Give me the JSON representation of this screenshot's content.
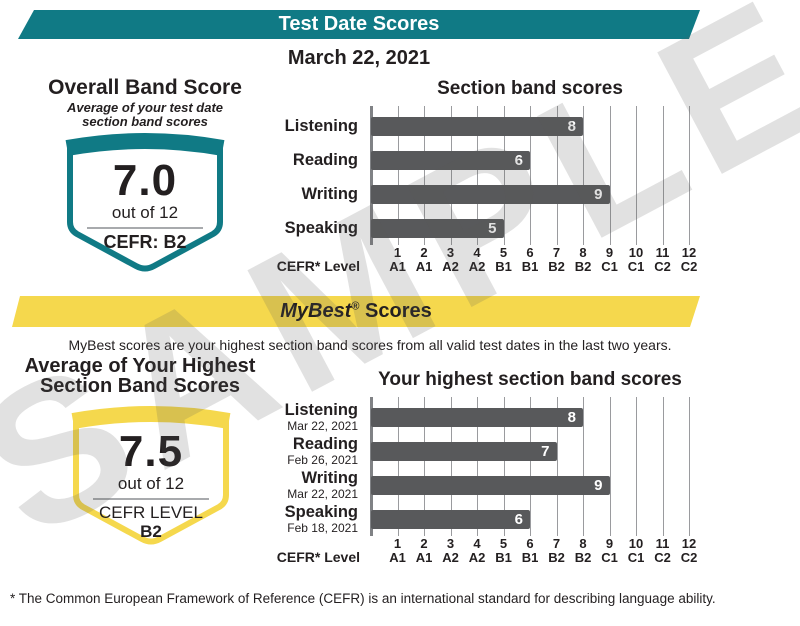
{
  "watermark": "SAMPLE",
  "header": {
    "title": "Test Date Scores",
    "date": "March 22, 2021"
  },
  "overall": {
    "title": "Overall Band Score",
    "subtitle_line1": "Average of your test date",
    "subtitle_line2": "section band scores",
    "score": "7.0",
    "out_of": "out of 12",
    "cefr": "CEFR: B2"
  },
  "mybest": {
    "banner_name": "MyBest",
    "banner_reg": "®",
    "banner_rest": " Scores",
    "description": "MyBest scores are your highest section band scores from all valid test dates in the last two years.",
    "avg_title_line1": "Average of Your Highest",
    "avg_title_line2": "Section Band Scores",
    "score": "7.5",
    "out_of": "out of 12",
    "cefr_label": "CEFR LEVEL",
    "cefr_value": "B2"
  },
  "footnote": "* The Common European Framework of Reference (CEFR) is an international standard for describing language ability.",
  "colors": {
    "teal": "#107a85",
    "yellow": "#f5d84d",
    "bar": "#58595b",
    "grid": "#9a9b9e",
    "axis": "#808285",
    "text": "#231f20",
    "divider": "#a8aaad"
  },
  "chart_data": [
    {
      "type": "bar",
      "title": "Section band scores",
      "categories": [
        "Listening",
        "Reading",
        "Writing",
        "Speaking"
      ],
      "values": [
        8,
        6,
        9,
        5
      ],
      "xlim": [
        0,
        12
      ],
      "x_ticks": [
        "1",
        "2",
        "3",
        "4",
        "5",
        "6",
        "7",
        "8",
        "9",
        "10",
        "11",
        "12"
      ],
      "cefr_levels": [
        "A1",
        "A1",
        "A2",
        "A2",
        "B1",
        "B1",
        "B2",
        "B2",
        "C1",
        "C1",
        "C2",
        "C2"
      ],
      "axis_label": "CEFR* Level",
      "grid": true,
      "legend": false,
      "bar_color": "#58595b"
    },
    {
      "type": "bar",
      "title": "Your highest section band scores",
      "categories": [
        "Listening",
        "Reading",
        "Writing",
        "Speaking"
      ],
      "dates": [
        "Mar 22, 2021",
        "Feb 26, 2021",
        "Mar 22, 2021",
        "Feb 18, 2021"
      ],
      "values": [
        8,
        7,
        9,
        6
      ],
      "xlim": [
        0,
        12
      ],
      "x_ticks": [
        "1",
        "2",
        "3",
        "4",
        "5",
        "6",
        "7",
        "8",
        "9",
        "10",
        "11",
        "12"
      ],
      "cefr_levels": [
        "A1",
        "A1",
        "A2",
        "A2",
        "B1",
        "B1",
        "B2",
        "B2",
        "C1",
        "C1",
        "C2",
        "C2"
      ],
      "axis_label": "CEFR* Level",
      "grid": true,
      "legend": false,
      "bar_color": "#58595b"
    }
  ]
}
